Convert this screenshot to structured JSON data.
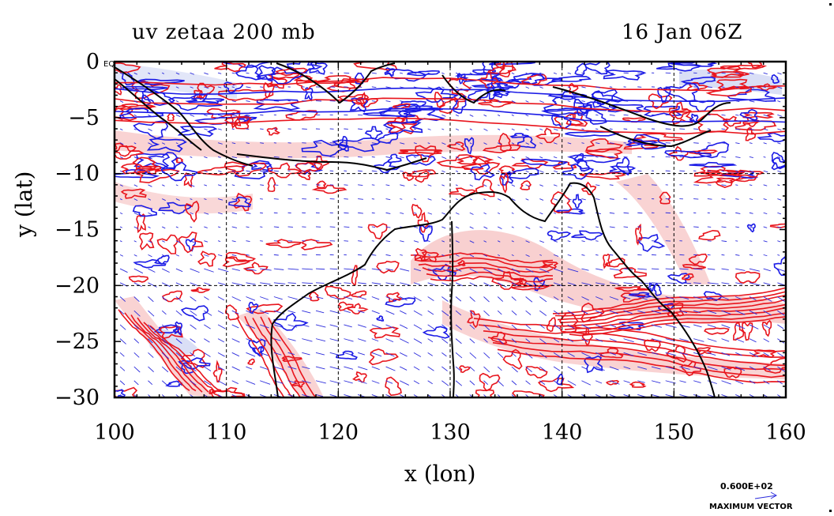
{
  "title": {
    "left": "uv zetaa 200 mb",
    "right": "16 Jan 06Z"
  },
  "axes": {
    "x_label": "x (lon)",
    "y_label": "y (lat)",
    "x_ticks": [
      "100",
      "110",
      "120",
      "130",
      "140",
      "150",
      "160"
    ],
    "y_ticks": [
      "0",
      "−5",
      "−10",
      "−15",
      "−20",
      "−25",
      "−30"
    ],
    "x_range": [
      100,
      160
    ],
    "y_range": [
      -30,
      0
    ],
    "corner_tick": "EQ"
  },
  "legend": {
    "max_vector_value": "0.600E+02",
    "max_vector_label": "MAXIMUM VECTOR"
  },
  "colors": {
    "positive_contour": "#e8141c",
    "negative_contour": "#1a1ae6",
    "positive_fill": "#f7c8c8",
    "negative_fill": "#d6dcf5",
    "vectors": "#2b2bdc",
    "coastline": "#000000"
  },
  "map_features": {
    "grid": "dashed, every 10 degrees",
    "landmasses": [
      "Australia",
      "New Guinea",
      "Indonesia",
      "Sumatra",
      "Borneo",
      "Java"
    ]
  }
}
